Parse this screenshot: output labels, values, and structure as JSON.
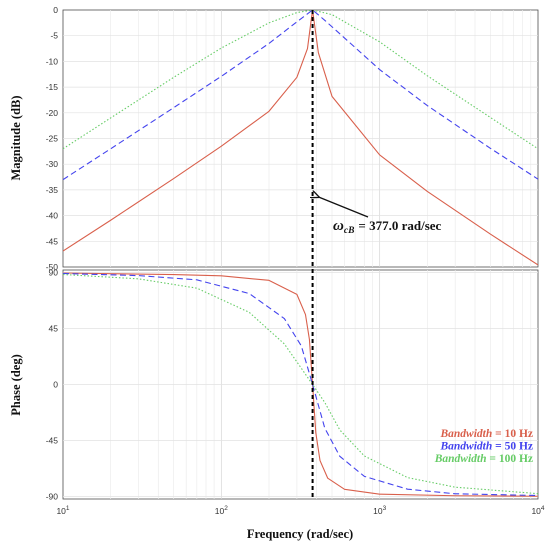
{
  "chart_data": [
    {
      "type": "line",
      "title": "",
      "xlabel": "",
      "ylabel": "Magnitude (dB)",
      "xscale": "log",
      "xlim": [
        10,
        10000
      ],
      "ylim": [
        -50,
        0
      ],
      "yticks": [
        0,
        -5,
        -10,
        -15,
        -20,
        -25,
        -30,
        -35,
        -40,
        -45,
        -50
      ],
      "yticklabels": [
        "0",
        "-5",
        "-10",
        "-15",
        "-20",
        "-25",
        "-30",
        "-35",
        "-40",
        "-45",
        "-50"
      ],
      "grid": true,
      "center_frequency": 377.0,
      "series": [
        {
          "name": "Bandwidth = 10 Hz",
          "color": "#d9604c",
          "dash": "solid",
          "x": [
            10,
            20,
            50,
            100,
            200,
            300,
            350,
            370,
            377,
            385,
            410,
            500,
            1000,
            2000,
            5000,
            10000
          ],
          "y": [
            -46.9,
            -40.9,
            -32.8,
            -26.5,
            -19.7,
            -13.1,
            -7.5,
            -1.8,
            0,
            -2.1,
            -8.3,
            -16.8,
            -28.2,
            -35.3,
            -43.6,
            -49.6
          ]
        },
        {
          "name": "Bandwidth = 50 Hz",
          "color": "#4444ee",
          "dash": "dashed",
          "x": [
            10,
            20,
            50,
            100,
            200,
            300,
            377,
            450,
            700,
            1000,
            2000,
            5000,
            10000
          ],
          "y": [
            -33.0,
            -27.0,
            -19.0,
            -12.9,
            -6.5,
            -2.3,
            0,
            -2.0,
            -7.3,
            -11.6,
            -18.6,
            -26.9,
            -32.9
          ]
        },
        {
          "name": "Bandwidth = 100 Hz",
          "color": "#66cc66",
          "dash": "dotted",
          "x": [
            10,
            20,
            50,
            100,
            200,
            300,
            377,
            500,
            1000,
            2000,
            5000,
            10000
          ],
          "y": [
            -27.0,
            -21.0,
            -13.1,
            -7.4,
            -2.5,
            -0.5,
            0,
            -0.9,
            -6.2,
            -12.8,
            -20.9,
            -27.0
          ]
        }
      ],
      "annotation": {
        "symbol": "ω",
        "subscript": "cB",
        "text": "=  377.0 rad/sec",
        "points_to": {
          "x": 377.0,
          "y": -35
        }
      }
    },
    {
      "type": "line",
      "title": "",
      "xlabel": "Frequency (rad/sec)",
      "ylabel": "Phase (deg)",
      "xscale": "log",
      "xlim": [
        10,
        10000
      ],
      "ylim": [
        -92,
        92
      ],
      "xticks": [
        10,
        100,
        1000,
        10000
      ],
      "xticklabels": [
        "10",
        "2",
        "3",
        "4"
      ],
      "yticks": [
        90,
        45,
        0,
        -45,
        -90
      ],
      "yticklabels": [
        "90",
        "45",
        "0",
        "-45",
        "-90"
      ],
      "grid": true,
      "legend_position": "bottom-right",
      "series": [
        {
          "name": "Bandwidth = 10 Hz",
          "color": "#d9604c",
          "dash": "solid",
          "x": [
            10,
            50,
            100,
            200,
            300,
            340,
            360,
            377,
            395,
            420,
            470,
            600,
            1000,
            3000,
            10000
          ],
          "y": [
            89.6,
            88.3,
            87.3,
            83.7,
            72.4,
            56.2,
            36.2,
            0,
            -38.7,
            -61.1,
            -75.3,
            -84.2,
            -88.1,
            -89.4,
            -89.8
          ]
        },
        {
          "name": "Bandwidth = 50 Hz",
          "color": "#4444ee",
          "dash": "dashed",
          "x": [
            10,
            30,
            70,
            150,
            250,
            320,
            377,
            450,
            560,
            800,
            1500,
            3000,
            10000
          ],
          "y": [
            89.2,
            87.5,
            84.1,
            73.1,
            53.0,
            31.0,
            0,
            -35.0,
            -57.7,
            -73.8,
            -84.1,
            -87.8,
            -89.2
          ]
        },
        {
          "name": "Bandwidth = 100 Hz",
          "color": "#66cc66",
          "dash": "dotted",
          "x": [
            10,
            30,
            70,
            150,
            250,
            320,
            377,
            450,
            560,
            800,
            1500,
            3000,
            10000
          ],
          "y": [
            88.4,
            84.9,
            77.4,
            58.0,
            32.6,
            13.1,
            0,
            -14.4,
            -36.5,
            -57.4,
            -74.8,
            -82.5,
            -87.7
          ]
        }
      ]
    }
  ],
  "legend": {
    "entries": [
      {
        "italic": "Bandwidth",
        "rest": " = 10 Hz",
        "color": "#d9604c"
      },
      {
        "italic": "Bandwidth",
        "rest": " = 50 Hz",
        "color": "#4444ee"
      },
      {
        "italic": "Bandwidth",
        "rest": " = 100 Hz",
        "color": "#66cc66"
      }
    ]
  },
  "xtick_base": "10"
}
